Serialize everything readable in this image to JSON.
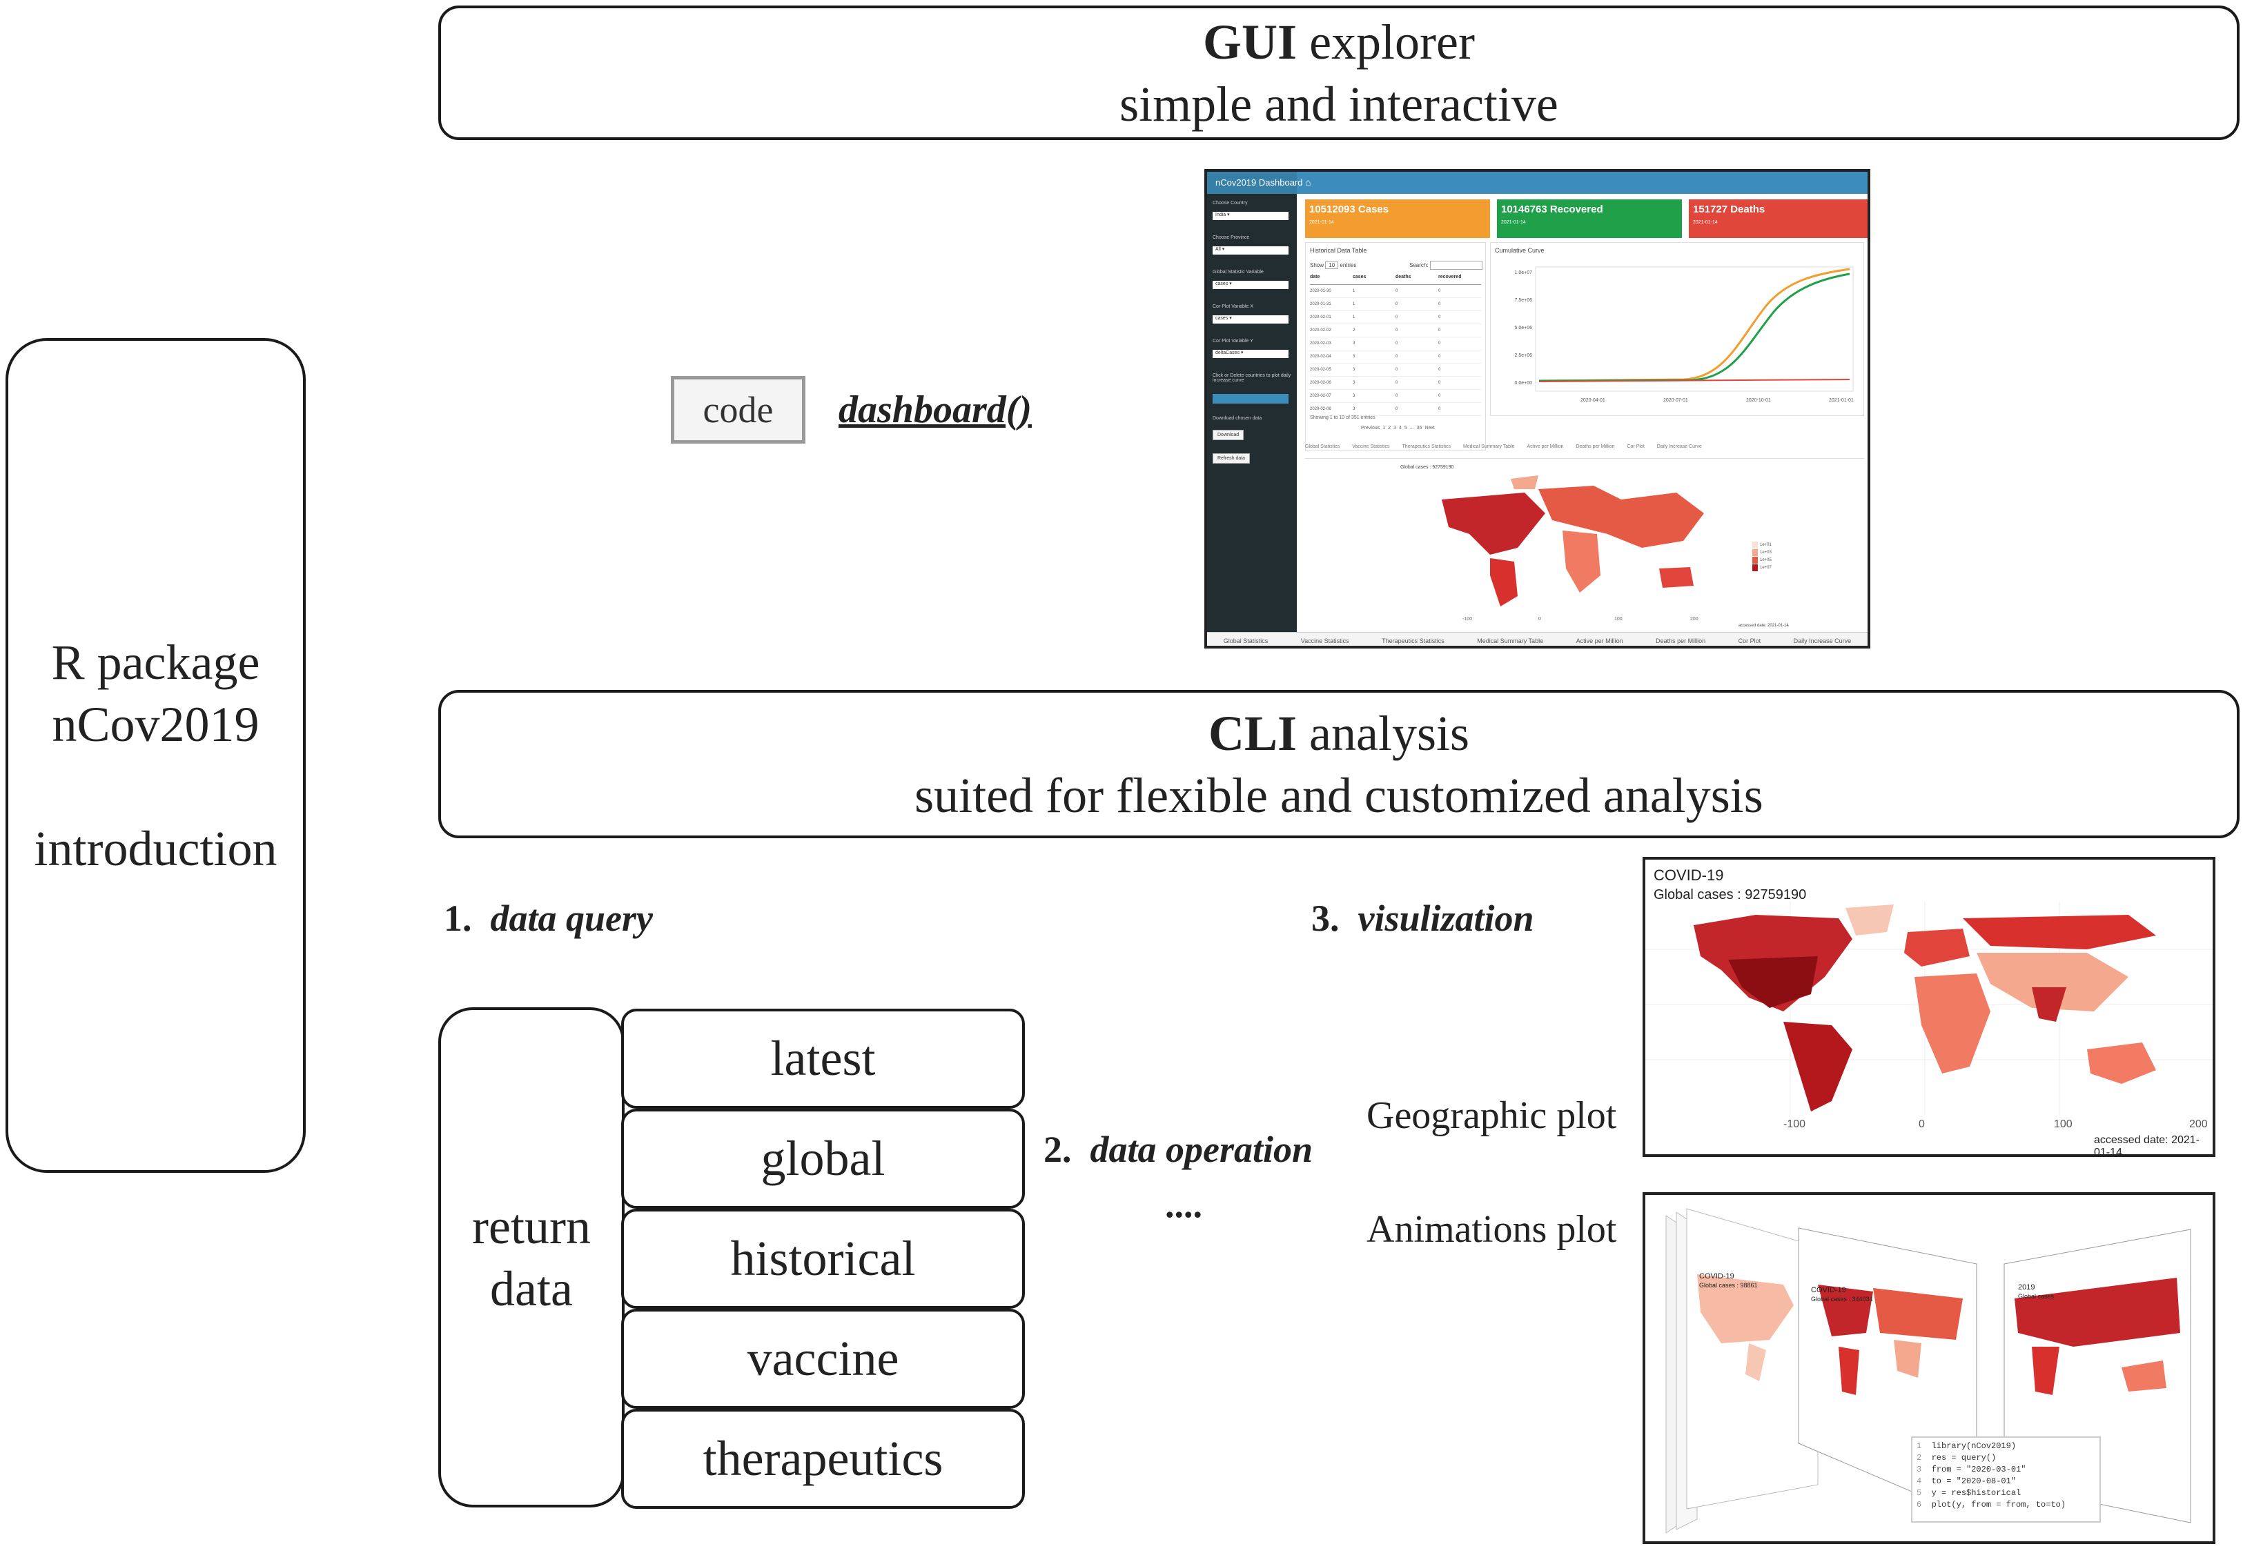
{
  "left_box": {
    "line1": "R package",
    "line2": "nCov2019",
    "line3": "introduction"
  },
  "gui": {
    "title_bold": "GUI",
    "title_rest": " explorer",
    "subtitle": "simple and  interactive"
  },
  "code_button": "code",
  "dashboard_fn": "dashboard()",
  "dashboard": {
    "header_title": "nCov2019 Dashboard",
    "sidebar_labels": [
      "Choose Country",
      "Choose Province",
      "Global Statistic Variable",
      "Cor Plot Variable X",
      "Cor Plot Variable Y",
      "Click or Delete countries to plot daily increase curve",
      "Download chosen data"
    ],
    "sidebar_values": [
      "India",
      "All",
      "cases",
      "cases",
      "deltaCases"
    ],
    "sidebar_buttons": [
      "Download",
      "Refresh data"
    ],
    "cards": [
      {
        "title": "10512093 Cases",
        "date": "2021-01-14",
        "color": "#f39c2f"
      },
      {
        "title": "10146763 Recovered",
        "date": "2021-01-14",
        "color": "#1fa049"
      },
      {
        "title": "151727 Deaths",
        "date": "2021-01-14",
        "color": "#e0463a"
      }
    ],
    "table_title": "Historical Data Table",
    "table_show_pre": "Show",
    "table_show_value": "10",
    "table_show_post": "entries",
    "table_search": "Search:",
    "table_headers": [
      "date",
      "cases",
      "deaths",
      "recovered"
    ],
    "table_rows": [
      [
        "2020-01-30",
        "1",
        "0",
        "0"
      ],
      [
        "2020-01-31",
        "1",
        "0",
        "0"
      ],
      [
        "2020-02-01",
        "1",
        "0",
        "0"
      ],
      [
        "2020-02-02",
        "2",
        "0",
        "0"
      ],
      [
        "2020-02-03",
        "3",
        "0",
        "0"
      ],
      [
        "2020-02-04",
        "3",
        "0",
        "0"
      ],
      [
        "2020-02-05",
        "3",
        "0",
        "0"
      ],
      [
        "2020-02-06",
        "3",
        "0",
        "0"
      ],
      [
        "2020-02-07",
        "3",
        "0",
        "0"
      ],
      [
        "2020-02-08",
        "3",
        "0",
        "0"
      ]
    ],
    "table_info": "Showing 1 to 10 of 351 entries",
    "pagination": [
      "Previous",
      "1",
      "2",
      "3",
      "4",
      "5",
      "...",
      "36",
      "Next"
    ],
    "curve_title": "Cumulative Curve",
    "curve_y_ticks": [
      "1.0e+07",
      "7.5e+06",
      "5.0e+06",
      "2.5e+06",
      "0.0e+00"
    ],
    "curve_x_ticks": [
      "2020-04-01",
      "2020-07-01",
      "2020-10-01",
      "2021-01-01"
    ],
    "tabs": [
      "Global Statistics",
      "Vaccine Statistics",
      "Therapeutics Statistics",
      "Medical Summary Table",
      "Active per Million",
      "Deaths per Million",
      "Cor Plot",
      "Daily Increase Curve"
    ],
    "map_caption": "Global cases : 92759190",
    "map_accessed": "accessed date: 2021-01-14",
    "map_x_ticks": [
      "-100",
      "0",
      "100",
      "200"
    ],
    "legend_labels": [
      "1e+01",
      "1e+03",
      "1e+05",
      "1e+07"
    ],
    "bottom_tabs": [
      "Global Statistics",
      "Vaccine Statistics",
      "Therapeutics Statistics",
      "Medical Summary Table",
      "Active per Million",
      "Deaths per Million",
      "Cor Plot",
      "Daily Increase Curve"
    ]
  },
  "cli": {
    "title_bold": "CLI",
    "title_rest": " analysis",
    "subtitle": "suited for flexible and customized analysis"
  },
  "step1": {
    "num": "1.",
    "label": "data query"
  },
  "step2": {
    "num": "2.",
    "label": "data operation",
    "ellipsis": "...."
  },
  "step3": {
    "num": "3.",
    "label": "visulization"
  },
  "return_data": {
    "line1": "return",
    "line2": "data"
  },
  "query_items": [
    "latest",
    "global",
    "historical",
    "vaccine",
    "therapeutics"
  ],
  "geo_label": "Geographic plot",
  "anim_label": "Animations plot",
  "geo_map": {
    "title": "COVID-19",
    "subtitle": "Global cases : 92759190",
    "x_ticks": [
      "-100",
      "0",
      "100",
      "200"
    ],
    "accessed": "accessed date: 2021-01-14"
  },
  "anim": {
    "frame_titles": [
      "COVID-19",
      "COVID-19",
      "2019"
    ],
    "frame_subs": [
      "Global cases : 98861",
      "Global cases : 344034",
      "Global cases"
    ],
    "code_lines": [
      {
        "n": "1",
        "text": "library(nCov2019)"
      },
      {
        "n": "2",
        "text": "res = query()"
      },
      {
        "n": "3",
        "text": "from = \"2020-03-01\""
      },
      {
        "n": "4",
        "text": "to = \"2020-08-01\""
      },
      {
        "n": "5",
        "text": "y = res$historical"
      },
      {
        "n": "6",
        "text": "plot(y, from = from, to=to)"
      }
    ]
  },
  "colors": {
    "map_dark": "#b3181d",
    "map_mid": "#e0443a",
    "map_light": "#f4a98f",
    "dash_sidebar": "#222d32",
    "dash_header": "#3c8dbc"
  }
}
